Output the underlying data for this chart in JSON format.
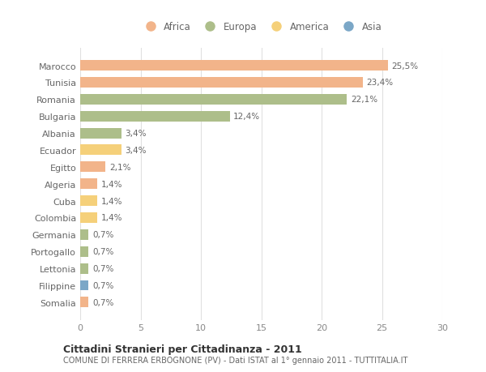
{
  "categories": [
    "Marocco",
    "Tunisia",
    "Romania",
    "Bulgaria",
    "Albania",
    "Ecuador",
    "Egitto",
    "Algeria",
    "Cuba",
    "Colombia",
    "Germania",
    "Portogallo",
    "Lettonia",
    "Filippine",
    "Somalia"
  ],
  "values": [
    25.5,
    23.4,
    22.1,
    12.4,
    3.4,
    3.4,
    2.1,
    1.4,
    1.4,
    1.4,
    0.7,
    0.7,
    0.7,
    0.7,
    0.7
  ],
  "labels": [
    "25,5%",
    "23,4%",
    "22,1%",
    "12,4%",
    "3,4%",
    "3,4%",
    "2,1%",
    "1,4%",
    "1,4%",
    "1,4%",
    "0,7%",
    "0,7%",
    "0,7%",
    "0,7%",
    "0,7%"
  ],
  "colors": [
    "#F2B48A",
    "#F2B48A",
    "#ADBE8A",
    "#ADBE8A",
    "#ADBE8A",
    "#F5D07A",
    "#F2B48A",
    "#F2B48A",
    "#F5D07A",
    "#F5D07A",
    "#ADBE8A",
    "#ADBE8A",
    "#ADBE8A",
    "#7BA7C7",
    "#F2B48A"
  ],
  "continent": [
    "Africa",
    "Africa",
    "Europa",
    "Europa",
    "Europa",
    "America",
    "Africa",
    "Africa",
    "America",
    "America",
    "Europa",
    "Europa",
    "Europa",
    "Asia",
    "Africa"
  ],
  "legend_labels": [
    "Africa",
    "Europa",
    "America",
    "Asia"
  ],
  "legend_colors": [
    "#F2B48A",
    "#ADBE8A",
    "#F5D07A",
    "#7BA7C7"
  ],
  "title": "Cittadini Stranieri per Cittadinanza - 2011",
  "subtitle": "COMUNE DI FERRERA ERBOGNONE (PV) - Dati ISTAT al 1° gennaio 2011 - TUTTITALIA.IT",
  "xlim": [
    0,
    30
  ],
  "xticks": [
    0,
    5,
    10,
    15,
    20,
    25,
    30
  ],
  "background_color": "#ffffff",
  "grid_color": "#e0e0e0"
}
